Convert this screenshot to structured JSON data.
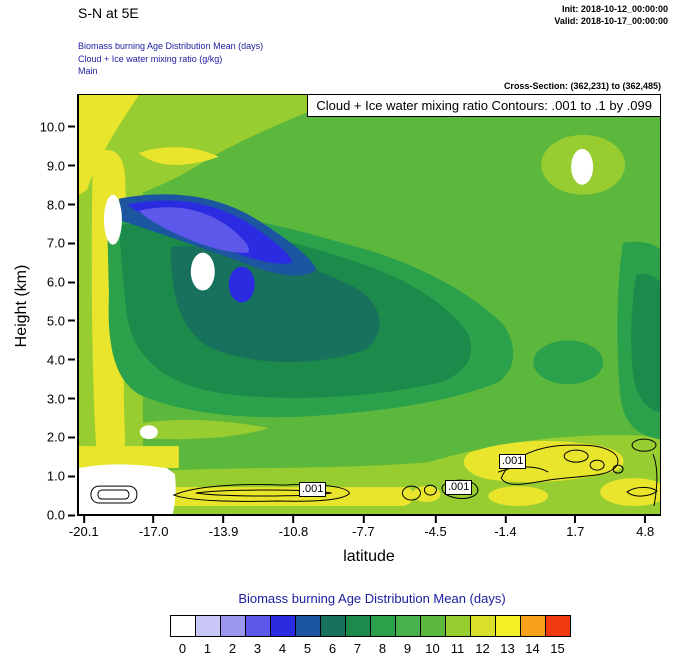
{
  "header": {
    "title": "S-N at 5E",
    "init": "Init: 2018-10-12_00:00:00",
    "valid": "Valid: 2018-10-17_00:00:00",
    "subtitle1": "Biomass burning Age Distribution Mean   (days)",
    "subtitle2": "Cloud + Ice water mixing ratio   (g/kg)",
    "subtitle3": "Main",
    "cross_section": "Cross-Section: (362,231) to (362,485)"
  },
  "plot": {
    "contour_info": "Cloud + Ice water mixing ratio Contours: .001 to .1 by .099",
    "contour_labels": [
      ".001",
      ".001",
      ".001"
    ],
    "ylabel": "Height (km)",
    "xlabel": "latitude"
  },
  "axes": {
    "x_ticks": [
      "-20.1",
      "-17.0",
      "-13.9",
      "-10.8",
      "-7.7",
      "-4.5",
      "-1.4",
      "1.7",
      "4.8"
    ],
    "y_ticks": [
      "0.0",
      "1.0",
      "2.0",
      "3.0",
      "4.0",
      "5.0",
      "6.0",
      "7.0",
      "8.0",
      "9.0",
      "10.0"
    ]
  },
  "legend": {
    "title": "Biomass burning Age Distribution Mean  (days)",
    "values": [
      "0",
      "1",
      "2",
      "3",
      "4",
      "5",
      "6",
      "7",
      "8",
      "9",
      "10",
      "11",
      "12",
      "13",
      "14",
      "15"
    ],
    "colors": [
      "#ffffff",
      "#c9c7f6",
      "#9b97ef",
      "#5d58e9",
      "#2b2be2",
      "#1c55a0",
      "#17715c",
      "#1b8a4a",
      "#2aa14a",
      "#49b14a",
      "#5cb83c",
      "#98cd31",
      "#d8e02b",
      "#f4ee27",
      "#f7a01b",
      "#f23a10"
    ]
  },
  "chart_data": {
    "type": "heatmap",
    "title": "S-N at 5E",
    "fill_variable": "Biomass burning Age Distribution Mean (days)",
    "contour_variable": "Cloud + Ice water mixing ratio (g/kg)",
    "contour_levels": [
      0.001,
      0.1
    ],
    "xlabel": "latitude",
    "ylabel": "Height (km)",
    "x_ticks": [
      -20.1,
      -17.0,
      -13.9,
      -10.8,
      -7.7,
      -4.5,
      -1.4,
      1.7,
      4.8
    ],
    "y_ticks": [
      0,
      1,
      2,
      3,
      4,
      5,
      6,
      7,
      8,
      9,
      10
    ],
    "xlim": [
      -20.4,
      5.5
    ],
    "ylim": [
      0,
      10.85
    ],
    "colorbar": {
      "label": "Biomass burning Age Distribution Mean (days)",
      "min": 0,
      "max": 15,
      "step": 1,
      "legend_position": "bottom"
    },
    "features": [
      {
        "value_days": "3-5",
        "description": "youngest smoke plume core (blue)",
        "lat_range": [
          -17.5,
          -11
        ],
        "height_km": [
          5.5,
          8.2
        ]
      },
      {
        "value_days": "6-8",
        "description": "young smoke mass (dark green/teal)",
        "lat_range": [
          -18.5,
          -5
        ],
        "height_km": [
          2,
          7.5
        ]
      },
      {
        "value_days": "0",
        "description": "white zero-age patches",
        "locations": [
          {
            "lat": [
              -20.1,
              -16.5
            ],
            "height_km": [
              0,
              1.3
            ]
          },
          {
            "lat": -18.8,
            "height_km": 7.9
          },
          {
            "lat": -14.5,
            "height_km": 6.2
          },
          {
            "lat": 1.7,
            "height_km": 8.9
          }
        ]
      },
      {
        "value_days": "9-10",
        "description": "background aged smoke (green) over most of the section"
      },
      {
        "value_days": "11-12",
        "description": "oldest smoke (yellow) along the left edge near lat -19 and in a shallow layer below 1.5 km"
      },
      {
        "description": "cloud + ice water mixing ratio 0.001 g/kg contours confined below ~2 km, labelled near lat -10.8, -4.6 and -1.4"
      }
    ]
  }
}
